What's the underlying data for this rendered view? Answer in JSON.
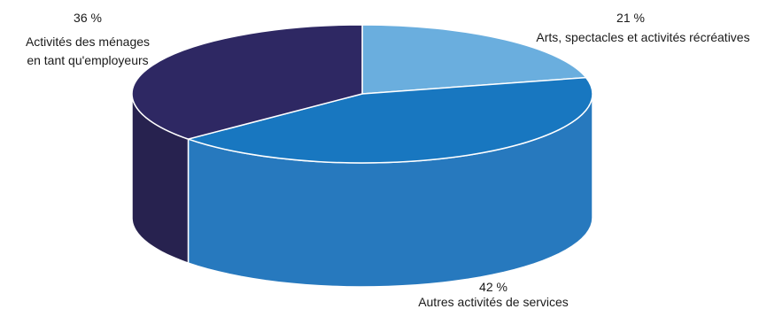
{
  "chart_data": {
    "type": "pie",
    "style": "3d",
    "title": "",
    "slices": [
      {
        "label": "Arts, spectacles et activités récréatives",
        "value": 21,
        "value_label": "21 %",
        "color": "#6aaede",
        "side_color": "#4e93c8"
      },
      {
        "label": "Autres activités de services",
        "value": 42,
        "value_label": "42 %",
        "color": "#1877c0",
        "side_color": "#2779be"
      },
      {
        "label_lines": [
          "Activités des ménages",
          "en tant qu'employeurs"
        ],
        "value": 36,
        "value_label": "36 %",
        "color": "#2e2863",
        "side_color": "#27224f"
      }
    ]
  }
}
